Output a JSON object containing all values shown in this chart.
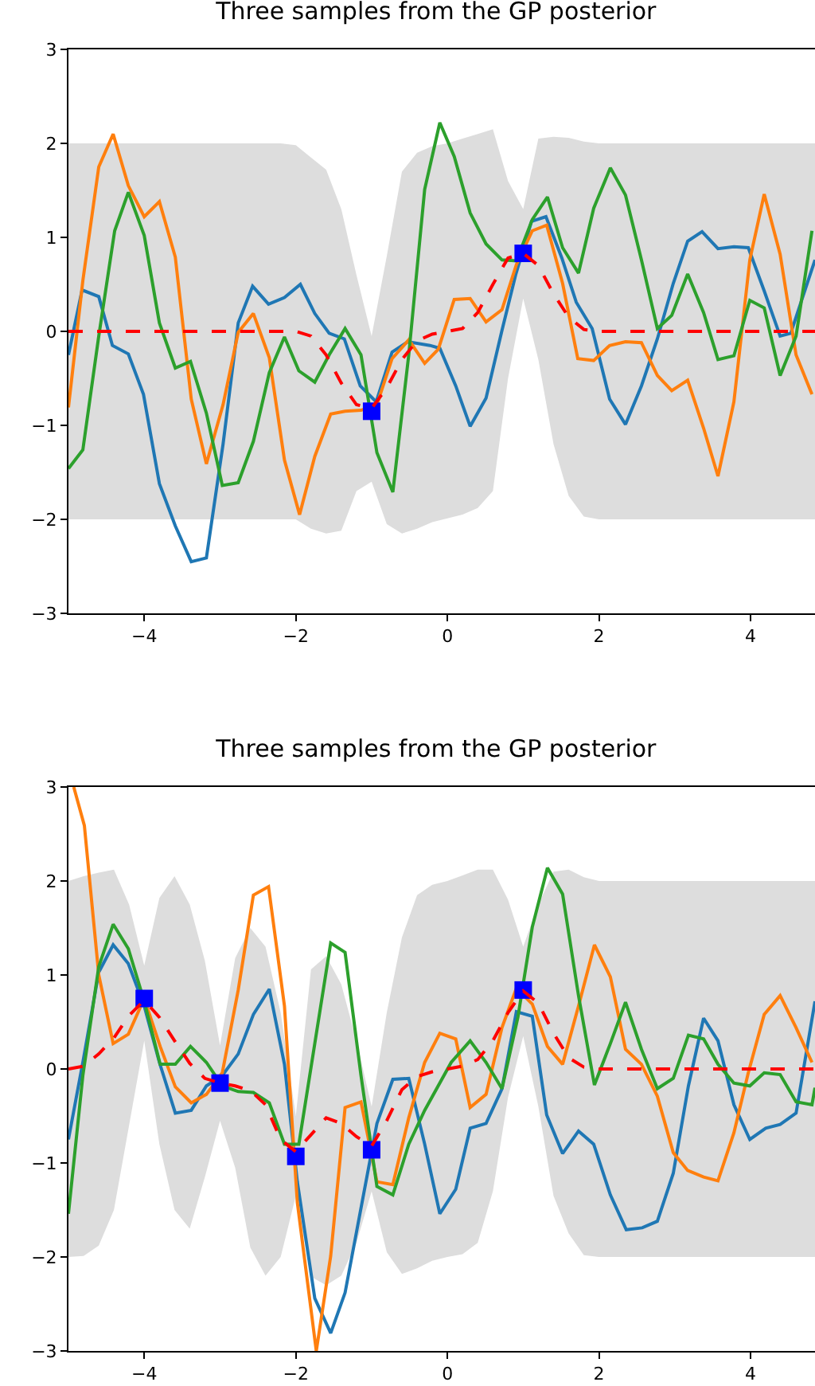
{
  "chart_data": [
    {
      "type": "line",
      "title": "Three samples from the GP posterior",
      "xlim": [
        -5,
        4.85
      ],
      "ylim": [
        -3,
        3
      ],
      "xticks": [
        -4,
        -2,
        0,
        2,
        4
      ],
      "yticks": [
        -3,
        -2,
        -1,
        0,
        1,
        2,
        3
      ],
      "series": [
        {
          "color": "#1f77b4",
          "line_style": "solid",
          "x": [
            -5,
            -4.82,
            -4.6,
            -4.42,
            -4.21,
            -4.01,
            -3.8,
            -3.59,
            -3.38,
            -3.18,
            -2.96,
            -2.76,
            -2.57,
            -2.36,
            -2.15,
            -1.94,
            -1.75,
            -1.56,
            -1.36,
            -1.15,
            -0.94,
            -0.73,
            -0.52,
            -0.23,
            -0.1,
            0.11,
            0.3,
            0.51,
            0.72,
            0.9,
            1.11,
            1.3,
            1.51,
            1.7,
            1.91,
            2.14,
            2.35,
            2.56,
            2.77,
            2.98,
            3.17,
            3.36,
            3.57,
            3.78,
            3.97,
            4.18,
            4.39,
            4.53,
            4.85
          ],
          "values": [
            -0.25,
            0.44,
            0.37,
            -0.15,
            -0.24,
            -0.67,
            -1.62,
            -2.07,
            -2.45,
            -2.41,
            -1.2,
            0.09,
            0.48,
            0.29,
            0.36,
            0.5,
            0.19,
            -0.02,
            -0.08,
            -0.58,
            -0.75,
            -0.22,
            -0.11,
            -0.15,
            -0.18,
            -0.58,
            -1.01,
            -0.71,
            0.01,
            0.6,
            1.17,
            1.22,
            0.78,
            0.31,
            0.03,
            -0.72,
            -0.99,
            -0.58,
            -0.08,
            0.51,
            0.96,
            1.06,
            0.88,
            0.9,
            0.89,
            0.43,
            -0.05,
            -0.02,
            0.76
          ]
        },
        {
          "color": "#ff7f0e",
          "line_style": "solid",
          "x": [
            -5,
            -4.81,
            -4.6,
            -4.41,
            -4.21,
            -4.0,
            -3.8,
            -3.59,
            -3.38,
            -3.18,
            -2.96,
            -2.76,
            -2.56,
            -2.35,
            -2.15,
            -1.95,
            -1.75,
            -1.54,
            -1.35,
            -1.14,
            -0.93,
            -0.73,
            -0.51,
            -0.3,
            -0.12,
            0.09,
            0.3,
            0.51,
            0.72,
            0.91,
            1.12,
            1.31,
            1.52,
            1.72,
            1.93,
            2.14,
            2.35,
            2.56,
            2.77,
            2.96,
            3.17,
            3.38,
            3.57,
            3.78,
            3.99,
            4.18,
            4.39,
            4.6,
            4.81
          ],
          "values": [
            -0.81,
            0.54,
            1.75,
            2.1,
            1.55,
            1.22,
            1.38,
            0.79,
            -0.72,
            -1.41,
            -0.78,
            -0.01,
            0.19,
            -0.28,
            -1.37,
            -1.95,
            -1.33,
            -0.88,
            -0.85,
            -0.84,
            -0.78,
            -0.29,
            -0.09,
            -0.34,
            -0.19,
            0.34,
            0.35,
            0.1,
            0.23,
            0.71,
            1.07,
            1.13,
            0.51,
            -0.29,
            -0.31,
            -0.15,
            -0.11,
            -0.12,
            -0.47,
            -0.63,
            -0.52,
            -1.03,
            -1.54,
            -0.75,
            0.76,
            1.46,
            0.82,
            -0.25,
            -0.67
          ]
        },
        {
          "color": "#2ca02c",
          "line_style": "solid",
          "x": [
            -5,
            -4.81,
            -4.6,
            -4.39,
            -4.21,
            -4.0,
            -3.8,
            -3.59,
            -3.39,
            -3.18,
            -2.97,
            -2.76,
            -2.56,
            -2.35,
            -2.15,
            -1.96,
            -1.75,
            -1.56,
            -1.35,
            -1.14,
            -0.93,
            -0.72,
            -0.51,
            -0.3,
            -0.1,
            0.09,
            0.3,
            0.51,
            0.72,
            0.91,
            1.12,
            1.32,
            1.52,
            1.73,
            1.93,
            2.15,
            2.35,
            2.56,
            2.77,
            2.96,
            3.17,
            3.38,
            3.57,
            3.78,
            3.99,
            4.18,
            4.39,
            4.6,
            4.81
          ],
          "values": [
            -1.46,
            -1.26,
            -0.05,
            1.07,
            1.48,
            1.02,
            0.09,
            -0.39,
            -0.32,
            -0.87,
            -1.64,
            -1.61,
            -1.17,
            -0.44,
            -0.06,
            -0.42,
            -0.54,
            -0.25,
            0.03,
            -0.25,
            -1.29,
            -1.71,
            -0.25,
            1.51,
            2.22,
            1.86,
            1.26,
            0.93,
            0.76,
            0.75,
            1.19,
            1.43,
            0.89,
            0.62,
            1.31,
            1.74,
            1.45,
            0.76,
            0.03,
            0.17,
            0.61,
            0.2,
            -0.3,
            -0.26,
            0.33,
            0.25,
            -0.47,
            -0.05,
            1.07
          ]
        },
        {
          "type": "scatter",
          "color": "#0000ff",
          "marker": "square",
          "x": [
            -1,
            1
          ],
          "values": [
            -0.85,
            0.83
          ]
        },
        {
          "color": "#ff0000",
          "line_style": "dashed",
          "x": [
            -5,
            -4,
            -3,
            -2.2,
            -2,
            -1.8,
            -1.6,
            -1.4,
            -1.2,
            -1,
            -0.8,
            -0.6,
            -0.4,
            -0.2,
            0,
            0.2,
            0.4,
            0.6,
            0.8,
            1,
            1.2,
            1.4,
            1.6,
            1.8,
            2,
            3,
            4,
            4.85
          ],
          "values": [
            0,
            0,
            0,
            0,
            0,
            -0.05,
            -0.25,
            -0.55,
            -0.78,
            -0.82,
            -0.6,
            -0.3,
            -0.1,
            -0.03,
            0,
            0.03,
            0.2,
            0.5,
            0.78,
            0.83,
            0.7,
            0.4,
            0.15,
            0.02,
            0,
            0,
            0,
            0
          ],
          "upper": [
            2,
            2,
            2,
            2,
            1.98,
            1.85,
            1.72,
            1.3,
            0.6,
            -0.05,
            0.8,
            1.7,
            1.9,
            1.97,
            2,
            2.05,
            2.1,
            2.15,
            1.6,
            1.3,
            2.05,
            2.07,
            2.06,
            2.02,
            2,
            2,
            2,
            2
          ],
          "lower": [
            -2,
            -2,
            -2,
            -2,
            -2,
            -2.1,
            -2.15,
            -2.12,
            -1.7,
            -1.6,
            -2.05,
            -2.15,
            -2.1,
            -2.03,
            -1.99,
            -1.95,
            -1.88,
            -1.7,
            -0.5,
            0.35,
            -0.3,
            -1.2,
            -1.75,
            -1.97,
            -2,
            -2,
            -2,
            -2
          ]
        }
      ]
    },
    {
      "type": "line",
      "title": "Three samples from the GP posterior",
      "xlim": [
        -5,
        4.85
      ],
      "ylim": [
        -3,
        3
      ],
      "xticks": [
        -4,
        -2,
        0,
        2,
        4
      ],
      "yticks": [
        -3,
        -2,
        -1,
        0,
        1,
        2,
        3
      ],
      "series": [
        {
          "color": "#1f77b4",
          "line_style": "solid",
          "x": [
            -5,
            -4.81,
            -4.6,
            -4.41,
            -4.21,
            -4.0,
            -3.8,
            -3.59,
            -3.38,
            -3.18,
            -2.97,
            -2.76,
            -2.56,
            -2.35,
            -2.15,
            -1.98,
            -1.75,
            -1.54,
            -1.35,
            -1.14,
            -0.93,
            -0.72,
            -0.51,
            -0.3,
            -0.1,
            0.11,
            0.3,
            0.51,
            0.72,
            0.91,
            1.12,
            1.31,
            1.52,
            1.73,
            1.93,
            2.15,
            2.36,
            2.57,
            2.77,
            2.98,
            3.18,
            3.38,
            3.57,
            3.78,
            3.99,
            4.2,
            4.39,
            4.6,
            4.85
          ],
          "values": [
            -0.75,
            0.07,
            1.03,
            1.32,
            1.12,
            0.67,
            0.07,
            -0.47,
            -0.44,
            -0.18,
            -0.07,
            0.16,
            0.58,
            0.85,
            0.05,
            -1.2,
            -2.44,
            -2.81,
            -2.38,
            -1.48,
            -0.58,
            -0.11,
            -0.1,
            -0.8,
            -1.54,
            -1.28,
            -0.63,
            -0.58,
            -0.21,
            0.61,
            0.56,
            -0.49,
            -0.9,
            -0.66,
            -0.8,
            -1.34,
            -1.71,
            -1.69,
            -1.62,
            -1.11,
            -0.18,
            0.54,
            0.3,
            -0.38,
            -0.75,
            -0.63,
            -0.59,
            -0.47,
            0.72
          ]
        },
        {
          "color": "#ff7f0e",
          "line_style": "solid",
          "x": [
            -4.93,
            -4.79,
            -4.6,
            -4.41,
            -4.21,
            -4.0,
            -3.79,
            -3.59,
            -3.38,
            -3.18,
            -2.97,
            -2.76,
            -2.56,
            -2.36,
            -2.15,
            -1.98,
            -1.73,
            -1.54,
            -1.35,
            -1.14,
            -0.93,
            -0.72,
            -0.51,
            -0.3,
            -0.1,
            0.11,
            0.3,
            0.51,
            0.72,
            0.91,
            1.12,
            1.32,
            1.52,
            1.73,
            1.94,
            2.15,
            2.35,
            2.56,
            2.77,
            2.98,
            3.17,
            3.38,
            3.57,
            3.78,
            3.97,
            4.18,
            4.39,
            4.6,
            4.81
          ],
          "values": [
            3,
            2.59,
            1.0,
            0.27,
            0.37,
            0.75,
            0.24,
            -0.19,
            -0.36,
            -0.27,
            -0.04,
            0.84,
            1.85,
            1.94,
            0.67,
            -1.42,
            -3,
            -1.99,
            -0.41,
            -0.35,
            -1.2,
            -1.23,
            -0.52,
            0.07,
            0.38,
            0.32,
            -0.41,
            -0.27,
            0.44,
            0.86,
            0.69,
            0.24,
            0.05,
            0.67,
            1.32,
            0.98,
            0.21,
            0.05,
            -0.29,
            -0.89,
            -1.08,
            -1.15,
            -1.19,
            -0.68,
            -0.04,
            0.58,
            0.78,
            0.44,
            0.07
          ]
        },
        {
          "color": "#2ca02c",
          "line_style": "solid",
          "x": [
            -5,
            -4.81,
            -4.6,
            -4.41,
            -4.21,
            -4.0,
            -3.79,
            -3.59,
            -3.39,
            -3.18,
            -2.97,
            -2.76,
            -2.56,
            -2.35,
            -2.15,
            -1.96,
            -1.75,
            -1.54,
            -1.35,
            -1.14,
            -0.93,
            -0.72,
            -0.51,
            -0.3,
            0.05,
            0.3,
            0.51,
            0.72,
            0.93,
            1.12,
            1.32,
            1.52,
            1.73,
            1.94,
            2.15,
            2.35,
            2.56,
            2.77,
            2.98,
            3.18,
            3.38,
            3.57,
            3.78,
            3.99,
            4.18,
            4.39,
            4.6,
            4.81,
            4.85
          ],
          "values": [
            -1.54,
            -0.07,
            1.09,
            1.54,
            1.28,
            0.72,
            0.05,
            0.05,
            0.24,
            0.07,
            -0.18,
            -0.24,
            -0.25,
            -0.36,
            -0.8,
            -0.8,
            0.27,
            1.34,
            1.24,
            -0.07,
            -1.25,
            -1.34,
            -0.8,
            -0.44,
            0.07,
            0.3,
            0.07,
            -0.21,
            0.55,
            1.51,
            2.14,
            1.86,
            0.78,
            -0.17,
            0.27,
            0.71,
            0.21,
            -0.21,
            -0.1,
            0.36,
            0.32,
            0.05,
            -0.15,
            -0.18,
            -0.04,
            -0.06,
            -0.35,
            -0.38,
            -0.2
          ]
        },
        {
          "type": "scatter",
          "color": "#0000ff",
          "marker": "square",
          "x": [
            -4,
            -3,
            -2,
            -1,
            1
          ],
          "values": [
            0.75,
            -0.15,
            -0.93,
            -0.86,
            0.84
          ]
        },
        {
          "color": "#ff0000",
          "line_style": "dashed",
          "x": [
            -5,
            -4.8,
            -4.6,
            -4.4,
            -4.2,
            -4,
            -3.8,
            -3.6,
            -3.4,
            -3.2,
            -3,
            -2.8,
            -2.6,
            -2.4,
            -2.2,
            -2,
            -1.8,
            -1.6,
            -1.4,
            -1.2,
            -1,
            -0.8,
            -0.6,
            -0.4,
            -0.2,
            0,
            0.2,
            0.4,
            0.6,
            0.8,
            1,
            1.2,
            1.4,
            1.6,
            1.8,
            2,
            3,
            4,
            4.85
          ],
          "values": [
            0,
            0.03,
            0.16,
            0.33,
            0.57,
            0.73,
            0.55,
            0.3,
            0.06,
            -0.1,
            -0.15,
            -0.18,
            -0.23,
            -0.38,
            -0.75,
            -0.88,
            -0.7,
            -0.52,
            -0.58,
            -0.72,
            -0.82,
            -0.55,
            -0.22,
            -0.08,
            -0.03,
            0,
            0.03,
            0.1,
            0.3,
            0.6,
            0.83,
            0.7,
            0.38,
            0.12,
            0.02,
            0,
            0,
            0,
            0
          ],
          "upper": [
            2,
            2.05,
            2.09,
            2.12,
            1.75,
            1.1,
            1.82,
            2.05,
            1.75,
            1.15,
            0.25,
            1.18,
            1.5,
            1.3,
            0.6,
            -0.5,
            1.06,
            1.2,
            0.9,
            0.3,
            -0.4,
            0.6,
            1.4,
            1.85,
            1.96,
            2,
            2.06,
            2.12,
            2.12,
            1.8,
            1.3,
            1.75,
            2.1,
            2.12,
            2.04,
            2,
            2,
            2,
            2
          ],
          "lower": [
            -2,
            -1.99,
            -1.88,
            -1.5,
            -0.6,
            0.3,
            -0.8,
            -1.5,
            -1.7,
            -1.15,
            -0.55,
            -1.05,
            -1.9,
            -2.2,
            -2,
            -1.35,
            -2.21,
            -2.3,
            -2.2,
            -1.85,
            -1.3,
            -1.95,
            -2.18,
            -2.12,
            -2.04,
            -2,
            -1.97,
            -1.85,
            -1.3,
            -0.3,
            0.35,
            -0.4,
            -1.35,
            -1.75,
            -1.98,
            -2,
            -2,
            -2,
            -2
          ]
        }
      ]
    }
  ]
}
